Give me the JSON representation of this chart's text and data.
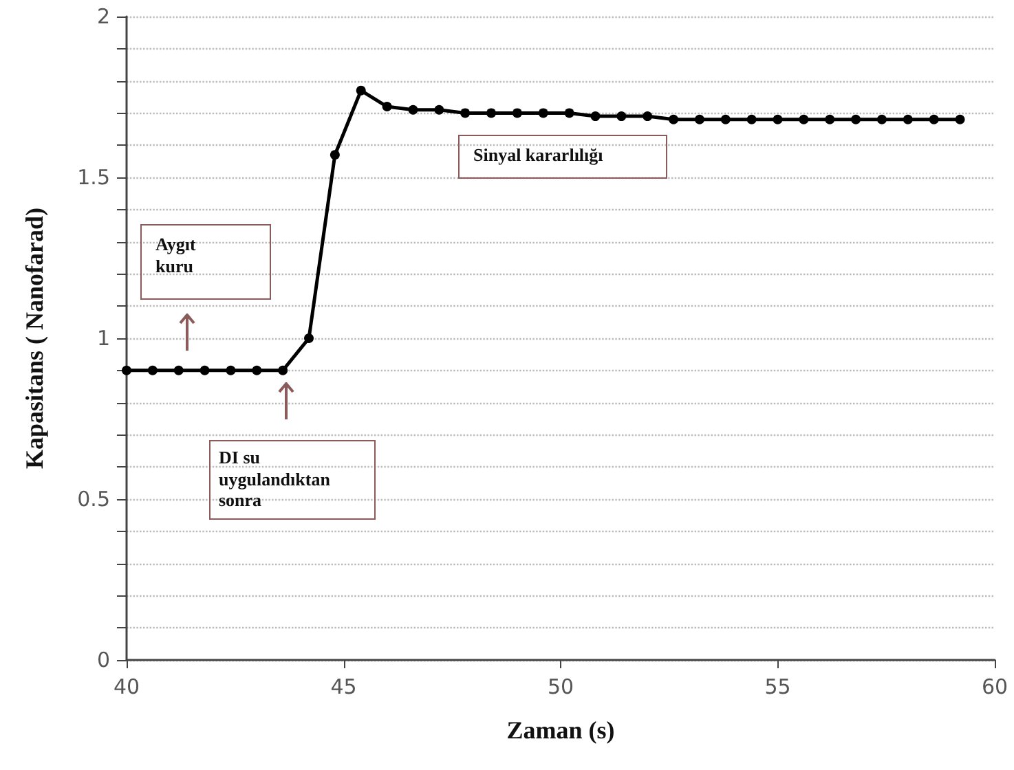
{
  "chart_data": {
    "type": "line",
    "xlabel": "Zaman (s)",
    "ylabel": "Kapasitans ( Nanofarad)",
    "x": [
      40,
      40.6,
      41.2,
      41.8,
      42.4,
      43.0,
      43.6,
      44.2,
      44.8,
      45.4,
      46.0,
      46.6,
      47.2,
      47.8,
      48.4,
      49.0,
      49.6,
      50.2,
      50.8,
      51.4,
      52.0,
      52.6,
      53.2,
      53.8,
      54.4,
      55.0,
      55.6,
      56.2,
      56.8,
      57.4,
      58.0,
      58.6,
      59.2
    ],
    "series": [
      {
        "color": "#000000",
        "values": [
          0.9,
          0.9,
          0.9,
          0.9,
          0.9,
          0.9,
          0.9,
          1.0,
          1.57,
          1.77,
          1.72,
          1.71,
          1.71,
          1.7,
          1.7,
          1.7,
          1.7,
          1.7,
          1.69,
          1.69,
          1.69,
          1.68,
          1.68,
          1.68,
          1.68,
          1.68,
          1.68,
          1.68,
          1.68,
          1.68,
          1.68,
          1.68,
          1.68
        ]
      }
    ],
    "xlim": [
      40,
      60
    ],
    "xticks": [
      40,
      45,
      50,
      55,
      60
    ],
    "ylim": [
      0,
      2
    ],
    "yticks": [
      0,
      {
        "value": 0.1,
        "label": null
      },
      {
        "value": 0.2,
        "label": null
      },
      {
        "value": 0.3,
        "label": null
      },
      {
        "value": 0.4,
        "label": null
      },
      0.5,
      {
        "value": 0.6,
        "label": null
      },
      {
        "value": 0.7,
        "label": null
      },
      {
        "value": 0.8,
        "label": null
      },
      {
        "value": 0.9,
        "label": null
      },
      1,
      {
        "value": 1.1,
        "label": null
      },
      {
        "value": 1.2,
        "label": null
      },
      {
        "value": 1.3,
        "label": null
      },
      {
        "value": 1.4,
        "label": null
      },
      1.5,
      {
        "value": 1.6,
        "label": null
      },
      {
        "value": 1.7,
        "label": null
      },
      {
        "value": 1.8,
        "label": null
      },
      {
        "value": 1.9,
        "label": null
      },
      2
    ],
    "annotations": [
      "Aygıt kuru",
      "DI su uygulandıktan sonra",
      "Sinyal kararlılığı"
    ],
    "grid": "y",
    "marker": "circle",
    "line_style": "solid"
  }
}
